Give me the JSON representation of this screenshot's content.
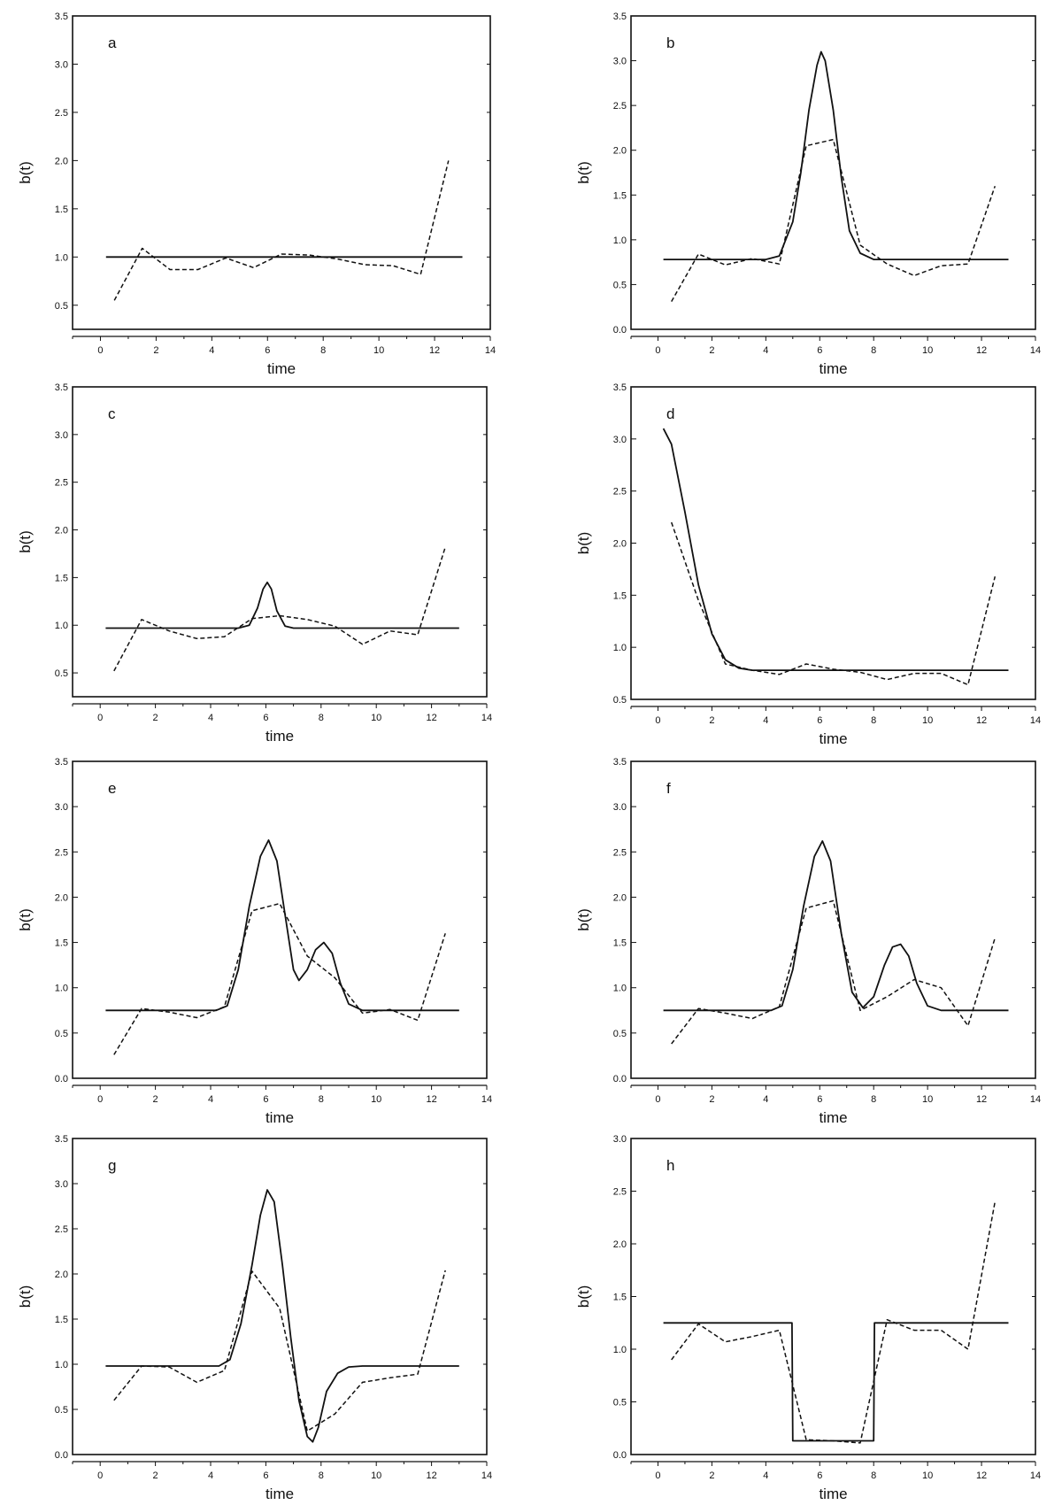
{
  "chart_data": [
    {
      "type": "line",
      "panel_label": "a",
      "xlabel": "time",
      "ylabel": "b(t)",
      "xlim": [
        -1,
        14
      ],
      "ylim": [
        0.25,
        3.5
      ],
      "xticks": [
        "0",
        "2",
        "4",
        "6",
        "8",
        "10",
        "12",
        "14"
      ],
      "yticks": [
        "0.5",
        "1.0",
        "1.5",
        "2.0",
        "2.5",
        "3.0",
        "3.5"
      ],
      "grid": false,
      "series": [
        {
          "style": "solid",
          "x": [
            0.2,
            13
          ],
          "y": [
            1.0,
            1.0
          ]
        },
        {
          "style": "dashed",
          "x": [
            0.5,
            1.5,
            2.5,
            3.5,
            4.5,
            5.5,
            6.5,
            7.5,
            8.5,
            9.5,
            10.5,
            11.5,
            12.5
          ],
          "y": [
            0.55,
            1.09,
            0.87,
            0.87,
            0.99,
            0.89,
            1.03,
            1.02,
            0.98,
            0.92,
            0.91,
            0.82,
            2.0
          ]
        }
      ]
    },
    {
      "type": "line",
      "panel_label": "b",
      "xlabel": "time",
      "ylabel": "b(t)",
      "xlim": [
        -1,
        14
      ],
      "ylim": [
        0.0,
        3.5
      ],
      "xticks": [
        "0",
        "2",
        "4",
        "6",
        "8",
        "10",
        "12",
        "14"
      ],
      "yticks": [
        "0.0",
        "0.5",
        "1.0",
        "1.5",
        "2.0",
        "2.5",
        "3.0",
        "3.5"
      ],
      "grid": false,
      "series": [
        {
          "style": "solid",
          "x": [
            0.2,
            4.0,
            4.5,
            5.0,
            5.3,
            5.6,
            5.9,
            6.05,
            6.2,
            6.5,
            6.8,
            7.1,
            7.5,
            8.0,
            13
          ],
          "y": [
            0.78,
            0.78,
            0.82,
            1.2,
            1.75,
            2.45,
            2.95,
            3.1,
            3.0,
            2.45,
            1.7,
            1.1,
            0.85,
            0.78,
            0.78
          ]
        },
        {
          "style": "dashed",
          "x": [
            0.5,
            1.5,
            2.5,
            3.5,
            4.5,
            5.5,
            6.5,
            7.5,
            8.5,
            9.5,
            10.5,
            11.5,
            12.5
          ],
          "y": [
            0.31,
            0.84,
            0.72,
            0.79,
            0.73,
            2.05,
            2.12,
            0.94,
            0.73,
            0.6,
            0.71,
            0.73,
            1.6
          ]
        }
      ]
    },
    {
      "type": "line",
      "panel_label": "c",
      "xlabel": "time",
      "ylabel": "b(t)",
      "xlim": [
        -1,
        14
      ],
      "ylim": [
        0.25,
        3.5
      ],
      "xticks": [
        "0",
        "2",
        "4",
        "6",
        "8",
        "10",
        "12",
        "14"
      ],
      "yticks": [
        "0.5",
        "1.0",
        "1.5",
        "2.0",
        "2.5",
        "3.0",
        "3.5"
      ],
      "grid": false,
      "series": [
        {
          "style": "solid",
          "x": [
            0.2,
            5.0,
            5.4,
            5.7,
            5.9,
            6.05,
            6.2,
            6.4,
            6.7,
            7.0,
            13
          ],
          "y": [
            0.97,
            0.97,
            1.0,
            1.18,
            1.38,
            1.45,
            1.38,
            1.15,
            0.99,
            0.97,
            0.97
          ]
        },
        {
          "style": "dashed",
          "x": [
            0.5,
            1.5,
            2.5,
            3.5,
            4.5,
            5.5,
            6.5,
            7.5,
            8.5,
            9.5,
            10.5,
            11.5,
            12.5
          ],
          "y": [
            0.52,
            1.06,
            0.94,
            0.86,
            0.88,
            1.07,
            1.1,
            1.06,
            0.99,
            0.8,
            0.94,
            0.9,
            1.82
          ]
        }
      ]
    },
    {
      "type": "line",
      "panel_label": "d",
      "xlabel": "time",
      "ylabel": "b(t)",
      "xlim": [
        -1,
        14
      ],
      "ylim": [
        0.5,
        3.5
      ],
      "xticks": [
        "0",
        "2",
        "4",
        "6",
        "8",
        "10",
        "12",
        "14"
      ],
      "yticks": [
        "0.5",
        "1.0",
        "1.5",
        "2.0",
        "2.5",
        "3.0",
        "3.5"
      ],
      "grid": false,
      "series": [
        {
          "style": "solid",
          "x": [
            0.2,
            0.5,
            1.0,
            1.5,
            2.0,
            2.5,
            3.0,
            3.5,
            4.0,
            13
          ],
          "y": [
            3.1,
            2.95,
            2.3,
            1.6,
            1.13,
            0.88,
            0.8,
            0.78,
            0.78,
            0.78
          ]
        },
        {
          "style": "dashed",
          "x": [
            0.5,
            1.5,
            2.5,
            3.5,
            4.5,
            5.5,
            6.5,
            7.5,
            8.5,
            9.5,
            10.5,
            11.5,
            12.5
          ],
          "y": [
            2.2,
            1.45,
            0.84,
            0.78,
            0.74,
            0.84,
            0.79,
            0.76,
            0.69,
            0.75,
            0.75,
            0.64,
            1.68
          ]
        }
      ]
    },
    {
      "type": "line",
      "panel_label": "e",
      "xlabel": "time",
      "ylabel": "b(t)",
      "xlim": [
        -1,
        14
      ],
      "ylim": [
        0.0,
        3.5
      ],
      "xticks": [
        "0",
        "2",
        "4",
        "6",
        "8",
        "10",
        "12",
        "14"
      ],
      "yticks": [
        "0.0",
        "0.5",
        "1.0",
        "1.5",
        "2.0",
        "2.5",
        "3.0",
        "3.5"
      ],
      "grid": false,
      "series": [
        {
          "style": "solid",
          "x": [
            0.2,
            4.2,
            4.6,
            5.0,
            5.4,
            5.8,
            6.1,
            6.4,
            6.7,
            7.0,
            7.2,
            7.5,
            7.8,
            8.1,
            8.4,
            8.7,
            9.0,
            9.5,
            13
          ],
          "y": [
            0.75,
            0.75,
            0.8,
            1.2,
            1.9,
            2.45,
            2.63,
            2.4,
            1.8,
            1.2,
            1.08,
            1.2,
            1.42,
            1.5,
            1.38,
            1.05,
            0.82,
            0.75,
            0.75
          ]
        },
        {
          "style": "dashed",
          "x": [
            0.5,
            1.5,
            2.5,
            3.5,
            4.5,
            5.5,
            6.5,
            7.5,
            8.5,
            9.5,
            10.5,
            11.5,
            12.5
          ],
          "y": [
            0.26,
            0.77,
            0.73,
            0.67,
            0.79,
            1.85,
            1.93,
            1.35,
            1.11,
            0.72,
            0.76,
            0.64,
            1.6
          ]
        }
      ]
    },
    {
      "type": "line",
      "panel_label": "f",
      "xlabel": "time",
      "ylabel": "b(t)",
      "xlim": [
        -1,
        14
      ],
      "ylim": [
        0.0,
        3.5
      ],
      "xticks": [
        "0",
        "2",
        "4",
        "6",
        "8",
        "10",
        "12",
        "14"
      ],
      "yticks": [
        "0.0",
        "0.5",
        "1.0",
        "1.5",
        "2.0",
        "2.5",
        "3.0",
        "3.5"
      ],
      "grid": false,
      "series": [
        {
          "style": "solid",
          "x": [
            0.2,
            4.2,
            4.6,
            5.0,
            5.4,
            5.8,
            6.1,
            6.4,
            6.8,
            7.2,
            7.6,
            8.0,
            8.4,
            8.7,
            9.0,
            9.3,
            9.6,
            10.0,
            10.5,
            13
          ],
          "y": [
            0.75,
            0.75,
            0.8,
            1.2,
            1.9,
            2.45,
            2.62,
            2.4,
            1.6,
            0.95,
            0.78,
            0.9,
            1.25,
            1.45,
            1.48,
            1.35,
            1.05,
            0.8,
            0.75,
            0.75
          ]
        },
        {
          "style": "dashed",
          "x": [
            0.5,
            1.5,
            2.5,
            3.5,
            4.5,
            5.5,
            6.5,
            7.5,
            8.5,
            9.5,
            10.5,
            11.5,
            12.5
          ],
          "y": [
            0.38,
            0.77,
            0.72,
            0.66,
            0.79,
            1.88,
            1.96,
            0.75,
            0.9,
            1.09,
            1.0,
            0.58,
            1.55
          ]
        }
      ]
    },
    {
      "type": "line",
      "panel_label": "g",
      "xlabel": "time",
      "ylabel": "b(t)",
      "xlim": [
        -1,
        14
      ],
      "ylim": [
        0.0,
        3.5
      ],
      "xticks": [
        "0",
        "2",
        "4",
        "6",
        "8",
        "10",
        "12",
        "14"
      ],
      "yticks": [
        "0.0",
        "0.5",
        "1.0",
        "1.5",
        "2.0",
        "2.5",
        "3.0",
        "3.5"
      ],
      "grid": false,
      "series": [
        {
          "style": "solid",
          "x": [
            0.2,
            4.3,
            4.7,
            5.1,
            5.5,
            5.8,
            6.05,
            6.3,
            6.6,
            6.9,
            7.2,
            7.5,
            7.7,
            7.9,
            8.2,
            8.6,
            9.0,
            9.5,
            13
          ],
          "y": [
            0.98,
            0.98,
            1.05,
            1.45,
            2.1,
            2.65,
            2.93,
            2.8,
            2.1,
            1.3,
            0.6,
            0.2,
            0.14,
            0.3,
            0.7,
            0.9,
            0.97,
            0.98,
            0.98
          ]
        },
        {
          "style": "dashed",
          "x": [
            0.5,
            1.5,
            2.5,
            3.5,
            4.5,
            5.5,
            6.5,
            7.5,
            8.5,
            9.5,
            10.5,
            11.5,
            12.5
          ],
          "y": [
            0.6,
            0.98,
            0.97,
            0.8,
            0.93,
            2.03,
            1.62,
            0.26,
            0.45,
            0.8,
            0.85,
            0.89,
            2.04
          ]
        }
      ]
    },
    {
      "type": "line",
      "panel_label": "h",
      "xlabel": "time",
      "ylabel": "b(t)",
      "xlim": [
        -1,
        14
      ],
      "ylim": [
        0.0,
        3.0
      ],
      "xticks": [
        "0",
        "2",
        "4",
        "6",
        "8",
        "10",
        "12",
        "14"
      ],
      "yticks": [
        "0.0",
        "0.5",
        "1.0",
        "1.5",
        "2.0",
        "2.5",
        "3.0"
      ],
      "grid": false,
      "series": [
        {
          "style": "solid",
          "x": [
            0.2,
            4.97,
            5.0,
            8.0,
            8.03,
            13
          ],
          "y": [
            1.25,
            1.25,
            0.13,
            0.13,
            1.25,
            1.25
          ]
        },
        {
          "style": "dashed",
          "x": [
            0.5,
            1.5,
            2.5,
            3.5,
            4.5,
            5.5,
            6.5,
            7.5,
            8.5,
            9.5,
            10.5,
            11.5,
            12.5
          ],
          "y": [
            0.9,
            1.24,
            1.07,
            1.12,
            1.18,
            0.14,
            0.13,
            0.11,
            1.28,
            1.18,
            1.18,
            1.0,
            2.4
          ]
        }
      ]
    }
  ]
}
